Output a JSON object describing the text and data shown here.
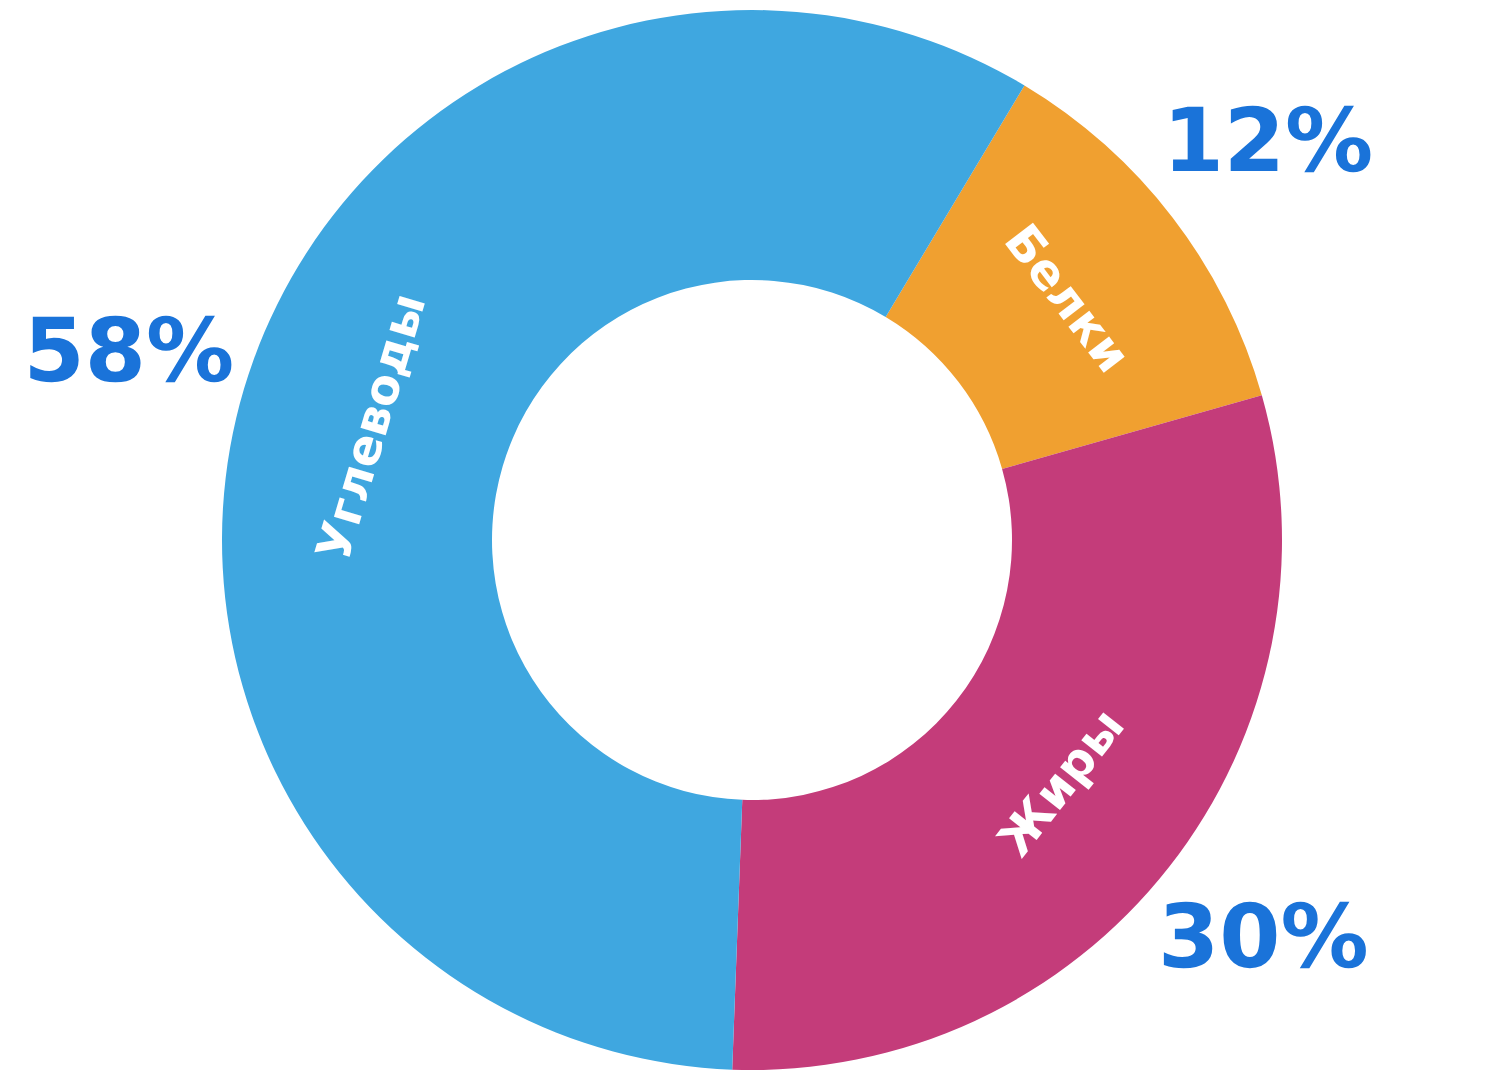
{
  "chart_data": {
    "type": "donut",
    "categories": [
      "Белки",
      "Жиры",
      "Углеводы"
    ],
    "values": [
      12,
      30,
      58
    ],
    "colors": [
      "#f0a030",
      "#c43c7a",
      "#3fa7e0"
    ],
    "value_labels": [
      "12%",
      "30%",
      "58%"
    ],
    "legend": false
  }
}
